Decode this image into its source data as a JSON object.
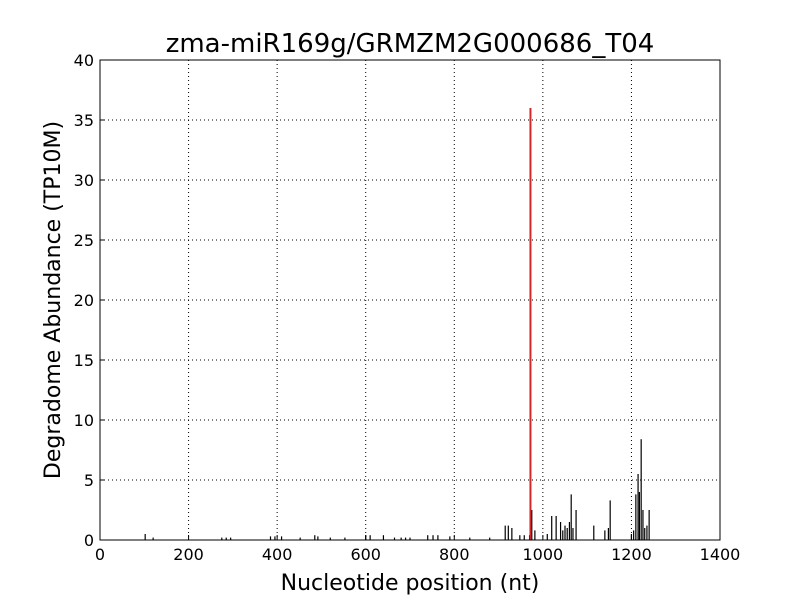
{
  "chart_data": {
    "type": "spike",
    "title": "zma-miR169g/GRMZM2G000686_T04",
    "xlabel": "Nucleotide position (nt)",
    "ylabel": "Degradome Abundance (TP10M)",
    "xlim": [
      0,
      1400
    ],
    "xticks": [
      0,
      200,
      400,
      600,
      800,
      1000,
      1200,
      1400
    ],
    "ylim": [
      0,
      40
    ],
    "yticks": [
      0,
      5,
      10,
      15,
      20,
      25,
      30,
      35,
      40
    ],
    "grid": true,
    "series": [
      {
        "color": "#000000",
        "x": [
          102,
          120,
          275,
          285,
          295,
          385,
          395,
          410,
          452,
          485,
          492,
          520,
          553,
          600,
          610,
          640,
          665,
          680,
          690,
          700,
          740,
          752,
          763,
          790,
          835,
          880,
          915,
          922,
          930,
          948,
          958,
          970,
          975,
          982,
          1010,
          1020,
          1030,
          1040,
          1045,
          1050,
          1055,
          1060,
          1064,
          1068,
          1075,
          1115,
          1140,
          1148,
          1152,
          1200,
          1205,
          1210,
          1215,
          1218,
          1222,
          1226,
          1230,
          1235,
          1240
        ],
        "values": [
          0.5,
          0.2,
          0.2,
          0.2,
          0.2,
          0.3,
          0.3,
          0.3,
          0.2,
          0.4,
          0.3,
          0.2,
          0.2,
          0.4,
          0.4,
          0.4,
          0.2,
          0.2,
          0.2,
          0.2,
          0.4,
          0.4,
          0.4,
          0.3,
          0.2,
          0.2,
          1.2,
          1.2,
          1.0,
          0.4,
          0.4,
          0.4,
          2.5,
          0.8,
          0.5,
          2.0,
          2.0,
          1.5,
          0.8,
          1.2,
          1.0,
          1.5,
          3.8,
          1.0,
          2.5,
          1.2,
          0.8,
          1.0,
          3.3,
          0.5,
          0.8,
          3.8,
          5.5,
          4.0,
          8.4,
          2.5,
          1.0,
          1.2,
          2.5
        ]
      },
      {
        "color": "#d62728",
        "x": [
          972
        ],
        "values": [
          36
        ]
      }
    ]
  }
}
